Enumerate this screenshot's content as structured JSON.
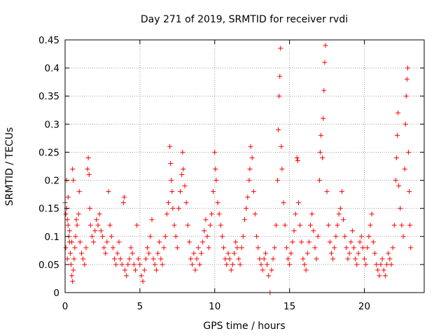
{
  "chart_data": {
    "type": "scatter",
    "title": "Day 271 of 2019, SRMTID for receiver rvdi",
    "xlabel": "GPS time / hours",
    "ylabel": "SRMTID / TECUs",
    "xlim": [
      0,
      24
    ],
    "ylim": [
      0,
      0.45
    ],
    "xticks": [
      0,
      5,
      10,
      15,
      20
    ],
    "xtick_labels": [
      "0",
      "5",
      "10",
      "15",
      "20"
    ],
    "yticks": [
      0,
      0.05,
      0.1,
      0.15,
      0.2,
      0.25,
      0.3,
      0.35,
      0.4,
      0.45
    ],
    "ytick_labels": [
      "0",
      "0.05",
      "0.1",
      "0.15",
      "0.2",
      "0.25",
      "0.3",
      "0.35",
      "0.4",
      "0.45"
    ],
    "grid": true,
    "marker": "plus",
    "color": "#ff0000",
    "series": [
      {
        "points": [
          [
            0.0,
            0.16
          ],
          [
            0.05,
            0.14
          ],
          [
            0.1,
            0.15
          ],
          [
            0.15,
            0.13
          ],
          [
            0.2,
            0.12
          ],
          [
            0.25,
            0.1
          ],
          [
            0.3,
            0.09
          ],
          [
            0.35,
            0.07
          ],
          [
            0.4,
            0.05
          ],
          [
            0.45,
            0.03
          ],
          [
            0.5,
            0.02
          ],
          [
            0.55,
            0.04
          ],
          [
            0.6,
            0.06
          ],
          [
            0.65,
            0.08
          ],
          [
            0.7,
            0.1
          ],
          [
            0.75,
            0.13
          ],
          [
            0.1,
            0.2
          ],
          [
            0.5,
            0.22
          ],
          [
            0.55,
            0.2
          ],
          [
            0.2,
            0.17
          ],
          [
            0.05,
            0.08
          ],
          [
            0.15,
            0.06
          ],
          [
            0.3,
            0.11
          ],
          [
            0.45,
            0.09
          ],
          [
            0.8,
            0.12
          ],
          [
            0.9,
            0.14
          ],
          [
            0.95,
            0.18
          ],
          [
            1.0,
            0.09
          ],
          [
            1.1,
            0.07
          ],
          [
            1.2,
            0.06
          ],
          [
            1.3,
            0.05
          ],
          [
            1.4,
            0.08
          ],
          [
            1.5,
            0.22
          ],
          [
            1.55,
            0.24
          ],
          [
            1.6,
            0.21
          ],
          [
            1.65,
            0.15
          ],
          [
            1.7,
            0.12
          ],
          [
            1.8,
            0.1
          ],
          [
            1.9,
            0.09
          ],
          [
            2.0,
            0.11
          ],
          [
            2.1,
            0.13
          ],
          [
            2.2,
            0.12
          ],
          [
            2.3,
            0.14
          ],
          [
            2.4,
            0.11
          ],
          [
            2.5,
            0.1
          ],
          [
            2.6,
            0.08
          ],
          [
            2.7,
            0.07
          ],
          [
            2.8,
            0.09
          ],
          [
            2.9,
            0.18
          ],
          [
            3.0,
            0.12
          ],
          [
            3.1,
            0.1
          ],
          [
            3.2,
            0.08
          ],
          [
            3.3,
            0.06
          ],
          [
            3.4,
            0.05
          ],
          [
            3.5,
            0.07
          ],
          [
            3.6,
            0.09
          ],
          [
            3.7,
            0.06
          ],
          [
            3.8,
            0.05
          ],
          [
            3.9,
            0.16
          ],
          [
            3.95,
            0.17
          ],
          [
            4.0,
            0.04
          ],
          [
            4.1,
            0.03
          ],
          [
            4.2,
            0.05
          ],
          [
            4.3,
            0.06
          ],
          [
            4.4,
            0.08
          ],
          [
            4.5,
            0.07
          ],
          [
            4.6,
            0.05
          ],
          [
            4.7,
            0.04
          ],
          [
            4.8,
            0.12
          ],
          [
            4.9,
            0.06
          ],
          [
            5.0,
            0.05
          ],
          [
            5.1,
            0.03
          ],
          [
            5.2,
            0.02
          ],
          [
            5.3,
            0.04
          ],
          [
            5.4,
            0.06
          ],
          [
            5.5,
            0.08
          ],
          [
            5.6,
            0.07
          ],
          [
            5.7,
            0.1
          ],
          [
            5.8,
            0.13
          ],
          [
            5.9,
            0.06
          ],
          [
            6.0,
            0.05
          ],
          [
            6.1,
            0.04
          ],
          [
            6.2,
            0.07
          ],
          [
            6.3,
            0.09
          ],
          [
            6.4,
            0.06
          ],
          [
            6.5,
            0.05
          ],
          [
            6.6,
            0.08
          ],
          [
            6.7,
            0.1
          ],
          [
            6.8,
            0.14
          ],
          [
            6.9,
            0.16
          ],
          [
            7.0,
            0.26
          ],
          [
            7.05,
            0.23
          ],
          [
            7.1,
            0.2
          ],
          [
            7.15,
            0.18
          ],
          [
            7.2,
            0.15
          ],
          [
            7.3,
            0.12
          ],
          [
            7.4,
            0.1
          ],
          [
            7.5,
            0.08
          ],
          [
            7.6,
            0.15
          ],
          [
            7.7,
            0.18
          ],
          [
            7.8,
            0.21
          ],
          [
            7.85,
            0.25
          ],
          [
            7.9,
            0.22
          ],
          [
            8.0,
            0.19
          ],
          [
            8.1,
            0.16
          ],
          [
            8.2,
            0.12
          ],
          [
            8.3,
            0.09
          ],
          [
            8.4,
            0.06
          ],
          [
            8.5,
            0.05
          ],
          [
            8.6,
            0.07
          ],
          [
            8.7,
            0.04
          ],
          [
            8.8,
            0.06
          ],
          [
            8.9,
            0.08
          ],
          [
            9.0,
            0.05
          ],
          [
            9.1,
            0.07
          ],
          [
            9.2,
            0.09
          ],
          [
            9.3,
            0.11
          ],
          [
            9.4,
            0.13
          ],
          [
            9.5,
            0.1
          ],
          [
            9.6,
            0.08
          ],
          [
            9.7,
            0.12
          ],
          [
            9.8,
            0.14
          ],
          [
            9.9,
            0.18
          ],
          [
            10.0,
            0.25
          ],
          [
            10.05,
            0.22
          ],
          [
            10.1,
            0.2
          ],
          [
            10.2,
            0.16
          ],
          [
            10.3,
            0.14
          ],
          [
            10.4,
            0.12
          ],
          [
            10.5,
            0.1
          ],
          [
            10.6,
            0.08
          ],
          [
            10.7,
            0.06
          ],
          [
            10.8,
            0.05
          ],
          [
            10.9,
            0.07
          ],
          [
            11.0,
            0.06
          ],
          [
            11.1,
            0.04
          ],
          [
            11.2,
            0.05
          ],
          [
            11.3,
            0.07
          ],
          [
            11.4,
            0.09
          ],
          [
            11.5,
            0.08
          ],
          [
            11.6,
            0.06
          ],
          [
            11.7,
            0.05
          ],
          [
            11.8,
            0.08
          ],
          [
            11.9,
            0.1
          ],
          [
            12.0,
            0.13
          ],
          [
            12.1,
            0.15
          ],
          [
            12.2,
            0.17
          ],
          [
            12.3,
            0.2
          ],
          [
            12.35,
            0.22
          ],
          [
            12.4,
            0.26
          ],
          [
            12.5,
            0.24
          ],
          [
            12.6,
            0.18
          ],
          [
            12.7,
            0.14
          ],
          [
            12.8,
            0.1
          ],
          [
            12.9,
            0.08
          ],
          [
            13.0,
            0.06
          ],
          [
            13.1,
            0.05
          ],
          [
            13.2,
            0.04
          ],
          [
            13.3,
            0.06
          ],
          [
            13.4,
            0.07
          ],
          [
            13.5,
            0.05
          ],
          [
            13.6,
            0.03
          ],
          [
            13.7,
            0.0
          ],
          [
            13.8,
            0.04
          ],
          [
            13.9,
            0.06
          ],
          [
            14.0,
            0.08
          ],
          [
            14.1,
            0.12
          ],
          [
            14.2,
            0.2
          ],
          [
            14.25,
            0.29
          ],
          [
            14.3,
            0.35
          ],
          [
            14.35,
            0.385
          ],
          [
            14.4,
            0.435
          ],
          [
            14.45,
            0.26
          ],
          [
            14.5,
            0.22
          ],
          [
            14.6,
            0.16
          ],
          [
            14.7,
            0.12
          ],
          [
            14.8,
            0.08
          ],
          [
            14.9,
            0.06
          ],
          [
            15.0,
            0.05
          ],
          [
            15.1,
            0.07
          ],
          [
            15.2,
            0.09
          ],
          [
            15.3,
            0.11
          ],
          [
            15.4,
            0.14
          ],
          [
            15.5,
            0.24
          ],
          [
            15.55,
            0.235
          ],
          [
            15.6,
            0.16
          ],
          [
            15.7,
            0.12
          ],
          [
            15.8,
            0.09
          ],
          [
            15.9,
            0.06
          ],
          [
            16.0,
            0.05
          ],
          [
            16.1,
            0.04
          ],
          [
            16.2,
            0.07
          ],
          [
            16.3,
            0.09
          ],
          [
            16.4,
            0.12
          ],
          [
            16.5,
            0.14
          ],
          [
            16.6,
            0.11
          ],
          [
            16.7,
            0.08
          ],
          [
            16.8,
            0.06
          ],
          [
            16.9,
            0.1
          ],
          [
            17.0,
            0.2
          ],
          [
            17.05,
            0.25
          ],
          [
            17.1,
            0.28
          ],
          [
            17.2,
            0.24
          ],
          [
            17.25,
            0.31
          ],
          [
            17.3,
            0.36
          ],
          [
            17.35,
            0.41
          ],
          [
            17.4,
            0.44
          ],
          [
            17.5,
            0.18
          ],
          [
            17.6,
            0.12
          ],
          [
            17.7,
            0.09
          ],
          [
            17.8,
            0.07
          ],
          [
            17.9,
            0.06
          ],
          [
            18.0,
            0.08
          ],
          [
            18.1,
            0.1
          ],
          [
            18.2,
            0.12
          ],
          [
            18.3,
            0.14
          ],
          [
            18.4,
            0.15
          ],
          [
            18.5,
            0.18
          ],
          [
            18.6,
            0.13
          ],
          [
            18.7,
            0.1
          ],
          [
            18.8,
            0.08
          ],
          [
            18.9,
            0.06
          ],
          [
            19.0,
            0.07
          ],
          [
            19.1,
            0.09
          ],
          [
            19.2,
            0.11
          ],
          [
            19.3,
            0.08
          ],
          [
            19.4,
            0.06
          ],
          [
            19.5,
            0.05
          ],
          [
            19.6,
            0.07
          ],
          [
            19.7,
            0.09
          ],
          [
            19.8,
            0.1
          ],
          [
            19.9,
            0.08
          ],
          [
            20.0,
            0.06
          ],
          [
            20.1,
            0.05
          ],
          [
            20.2,
            0.08
          ],
          [
            20.3,
            0.1
          ],
          [
            20.4,
            0.12
          ],
          [
            20.5,
            0.14
          ],
          [
            20.6,
            0.09
          ],
          [
            20.7,
            0.07
          ],
          [
            20.8,
            0.05
          ],
          [
            20.9,
            0.04
          ],
          [
            21.0,
            0.03
          ],
          [
            21.1,
            0.05
          ],
          [
            21.2,
            0.06
          ],
          [
            21.3,
            0.04
          ],
          [
            21.4,
            0.03
          ],
          [
            21.5,
            0.05
          ],
          [
            21.6,
            0.07
          ],
          [
            21.7,
            0.06
          ],
          [
            21.8,
            0.05
          ],
          [
            21.9,
            0.08
          ],
          [
            22.0,
            0.12
          ],
          [
            22.1,
            0.2
          ],
          [
            22.15,
            0.24
          ],
          [
            22.2,
            0.28
          ],
          [
            22.25,
            0.32
          ],
          [
            22.3,
            0.19
          ],
          [
            22.4,
            0.15
          ],
          [
            22.5,
            0.12
          ],
          [
            22.6,
            0.1
          ],
          [
            22.7,
            0.22
          ],
          [
            22.75,
            0.3
          ],
          [
            22.8,
            0.35
          ],
          [
            22.85,
            0.38
          ],
          [
            22.9,
            0.4
          ],
          [
            22.95,
            0.25
          ],
          [
            23.0,
            0.18
          ],
          [
            23.05,
            0.12
          ],
          [
            23.1,
            0.08
          ]
        ]
      }
    ]
  }
}
